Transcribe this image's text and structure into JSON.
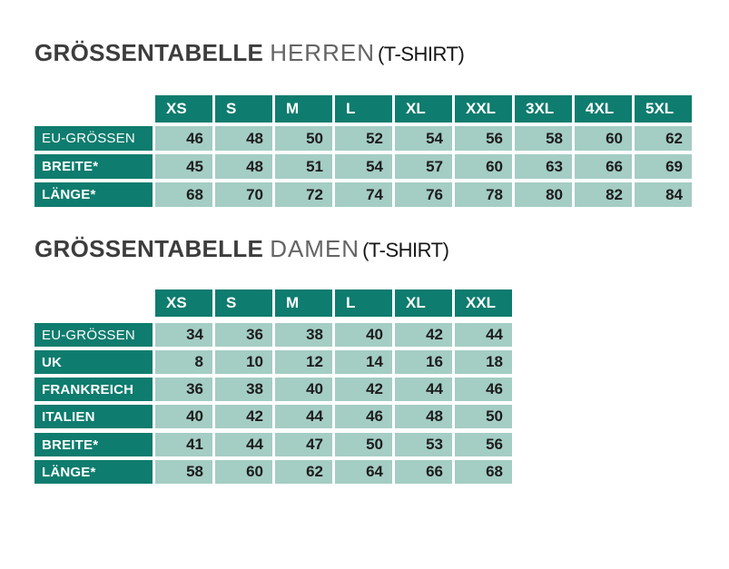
{
  "colors": {
    "header_teal": "#0E7C6E",
    "cell_light": "#A4CDC4",
    "title_dark": "#3D3D3D",
    "title_gray": "#646464",
    "number_text": "#1D1D1D"
  },
  "tables": [
    {
      "title": {
        "main": "GRÖSSENTABELLE",
        "audience": "HERREN",
        "product": "(T-SHIRT)"
      },
      "sizes": [
        "XS",
        "S",
        "M",
        "L",
        "XL",
        "XXL",
        "3XL",
        "4XL",
        "5XL"
      ],
      "rows": [
        {
          "label": "EU-GRÖSSEN",
          "emphasis": false,
          "values": [
            46,
            48,
            50,
            52,
            54,
            56,
            58,
            60,
            62
          ]
        },
        {
          "label": "BREITE*",
          "emphasis": true,
          "values": [
            45,
            48,
            51,
            54,
            57,
            60,
            63,
            66,
            69
          ]
        },
        {
          "label": "LÄNGE*",
          "emphasis": true,
          "values": [
            68,
            70,
            72,
            74,
            76,
            78,
            80,
            82,
            84
          ]
        }
      ]
    },
    {
      "title": {
        "main": "GRÖSSENTABELLE",
        "audience": "DAMEN",
        "product": "(T-SHIRT)"
      },
      "sizes": [
        "XS",
        "S",
        "M",
        "L",
        "XL",
        "XXL"
      ],
      "rows": [
        {
          "label": "EU-GRÖSSEN",
          "emphasis": false,
          "values": [
            34,
            36,
            38,
            40,
            42,
            44
          ]
        },
        {
          "label": "UK",
          "emphasis": true,
          "values": [
            8,
            10,
            12,
            14,
            16,
            18
          ]
        },
        {
          "label": "FRANKREICH",
          "emphasis": true,
          "values": [
            36,
            38,
            40,
            42,
            44,
            46
          ]
        },
        {
          "label": "ITALIEN",
          "emphasis": true,
          "values": [
            40,
            42,
            44,
            46,
            48,
            50
          ]
        },
        {
          "label": "BREITE*",
          "emphasis": true,
          "group_gap": true,
          "values": [
            41,
            44,
            47,
            50,
            53,
            56
          ]
        },
        {
          "label": "LÄNGE*",
          "emphasis": true,
          "values": [
            58,
            60,
            62,
            64,
            66,
            68
          ]
        }
      ]
    }
  ]
}
